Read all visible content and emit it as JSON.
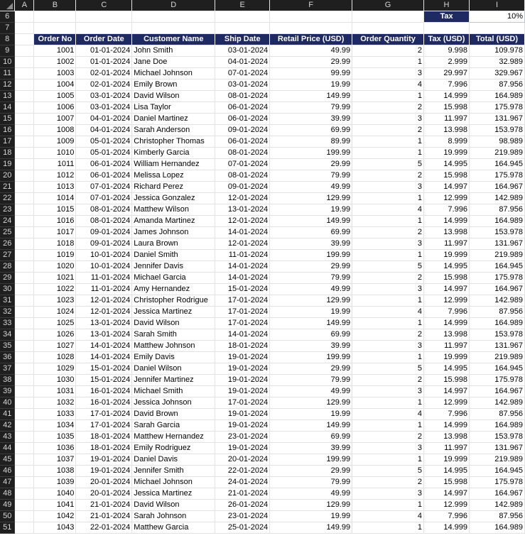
{
  "column_headers": [
    "A",
    "B",
    "C",
    "D",
    "E",
    "F",
    "G",
    "H",
    "I"
  ],
  "tax": {
    "label": "Tax",
    "value": "10%"
  },
  "table_headers": [
    "Order No",
    "Order Date",
    "Customer Name",
    "Ship Date",
    "Retail Price (USD)",
    "Order Quantity",
    "Tax (USD)",
    "Total (USD)"
  ],
  "rows": [
    {
      "r": "9",
      "no": "1001",
      "date": "01-01-2024",
      "name": "John Smith",
      "ship": "03-01-2024",
      "price": "49.99",
      "qty": "2",
      "tax": "9.998",
      "total": "109.978"
    },
    {
      "r": "10",
      "no": "1002",
      "date": "01-01-2024",
      "name": "Jane Doe",
      "ship": "04-01-2024",
      "price": "29.99",
      "qty": "1",
      "tax": "2.999",
      "total": "32.989"
    },
    {
      "r": "11",
      "no": "1003",
      "date": "02-01-2024",
      "name": "Michael Johnson",
      "ship": "07-01-2024",
      "price": "99.99",
      "qty": "3",
      "tax": "29.997",
      "total": "329.967"
    },
    {
      "r": "12",
      "no": "1004",
      "date": "02-01-2024",
      "name": "Emily Brown",
      "ship": "03-01-2024",
      "price": "19.99",
      "qty": "4",
      "tax": "7.996",
      "total": "87.956"
    },
    {
      "r": "13",
      "no": "1005",
      "date": "03-01-2024",
      "name": "David Wilson",
      "ship": "08-01-2024",
      "price": "149.99",
      "qty": "1",
      "tax": "14.999",
      "total": "164.989"
    },
    {
      "r": "14",
      "no": "1006",
      "date": "03-01-2024",
      "name": "Lisa Taylor",
      "ship": "06-01-2024",
      "price": "79.99",
      "qty": "2",
      "tax": "15.998",
      "total": "175.978"
    },
    {
      "r": "15",
      "no": "1007",
      "date": "04-01-2024",
      "name": "Daniel Martinez",
      "ship": "06-01-2024",
      "price": "39.99",
      "qty": "3",
      "tax": "11.997",
      "total": "131.967"
    },
    {
      "r": "16",
      "no": "1008",
      "date": "04-01-2024",
      "name": "Sarah Anderson",
      "ship": "09-01-2024",
      "price": "69.99",
      "qty": "2",
      "tax": "13.998",
      "total": "153.978"
    },
    {
      "r": "17",
      "no": "1009",
      "date": "05-01-2024",
      "name": "Christopher Thomas",
      "ship": "06-01-2024",
      "price": "89.99",
      "qty": "1",
      "tax": "8.999",
      "total": "98.989"
    },
    {
      "r": "18",
      "no": "1010",
      "date": "05-01-2024",
      "name": "Kimberly Garcia",
      "ship": "08-01-2024",
      "price": "199.99",
      "qty": "1",
      "tax": "19.999",
      "total": "219.989"
    },
    {
      "r": "19",
      "no": "1011",
      "date": "06-01-2024",
      "name": "William Hernandez",
      "ship": "07-01-2024",
      "price": "29.99",
      "qty": "5",
      "tax": "14.995",
      "total": "164.945"
    },
    {
      "r": "20",
      "no": "1012",
      "date": "06-01-2024",
      "name": "Melissa Lopez",
      "ship": "08-01-2024",
      "price": "79.99",
      "qty": "2",
      "tax": "15.998",
      "total": "175.978"
    },
    {
      "r": "21",
      "no": "1013",
      "date": "07-01-2024",
      "name": "Richard Perez",
      "ship": "09-01-2024",
      "price": "49.99",
      "qty": "3",
      "tax": "14.997",
      "total": "164.967"
    },
    {
      "r": "22",
      "no": "1014",
      "date": "07-01-2024",
      "name": "Jessica Gonzalez",
      "ship": "12-01-2024",
      "price": "129.99",
      "qty": "1",
      "tax": "12.999",
      "total": "142.989"
    },
    {
      "r": "23",
      "no": "1015",
      "date": "08-01-2024",
      "name": "Matthew Wilson",
      "ship": "13-01-2024",
      "price": "19.99",
      "qty": "4",
      "tax": "7.996",
      "total": "87.956"
    },
    {
      "r": "24",
      "no": "1016",
      "date": "08-01-2024",
      "name": "Amanda Martinez",
      "ship": "12-01-2024",
      "price": "149.99",
      "qty": "1",
      "tax": "14.999",
      "total": "164.989"
    },
    {
      "r": "25",
      "no": "1017",
      "date": "09-01-2024",
      "name": "James Johnson",
      "ship": "14-01-2024",
      "price": "69.99",
      "qty": "2",
      "tax": "13.998",
      "total": "153.978"
    },
    {
      "r": "26",
      "no": "1018",
      "date": "09-01-2024",
      "name": "Laura Brown",
      "ship": "12-01-2024",
      "price": "39.99",
      "qty": "3",
      "tax": "11.997",
      "total": "131.967"
    },
    {
      "r": "27",
      "no": "1019",
      "date": "10-01-2024",
      "name": "Daniel Smith",
      "ship": "11-01-2024",
      "price": "199.99",
      "qty": "1",
      "tax": "19.999",
      "total": "219.989"
    },
    {
      "r": "28",
      "no": "1020",
      "date": "10-01-2024",
      "name": "Jennifer Davis",
      "ship": "14-01-2024",
      "price": "29.99",
      "qty": "5",
      "tax": "14.995",
      "total": "164.945"
    },
    {
      "r": "29",
      "no": "1021",
      "date": "11-01-2024",
      "name": "Michael Garcia",
      "ship": "14-01-2024",
      "price": "79.99",
      "qty": "2",
      "tax": "15.998",
      "total": "175.978"
    },
    {
      "r": "30",
      "no": "1022",
      "date": "11-01-2024",
      "name": "Amy Hernandez",
      "ship": "15-01-2024",
      "price": "49.99",
      "qty": "3",
      "tax": "14.997",
      "total": "164.967"
    },
    {
      "r": "31",
      "no": "1023",
      "date": "12-01-2024",
      "name": "Christopher Rodrigue",
      "ship": "17-01-2024",
      "price": "129.99",
      "qty": "1",
      "tax": "12.999",
      "total": "142.989"
    },
    {
      "r": "32",
      "no": "1024",
      "date": "12-01-2024",
      "name": "Jessica Martinez",
      "ship": "17-01-2024",
      "price": "19.99",
      "qty": "4",
      "tax": "7.996",
      "total": "87.956"
    },
    {
      "r": "33",
      "no": "1025",
      "date": "13-01-2024",
      "name": "David Wilson",
      "ship": "17-01-2024",
      "price": "149.99",
      "qty": "1",
      "tax": "14.999",
      "total": "164.989"
    },
    {
      "r": "34",
      "no": "1026",
      "date": "13-01-2024",
      "name": "Sarah Smith",
      "ship": "14-01-2024",
      "price": "69.99",
      "qty": "2",
      "tax": "13.998",
      "total": "153.978"
    },
    {
      "r": "35",
      "no": "1027",
      "date": "14-01-2024",
      "name": "Matthew Johnson",
      "ship": "18-01-2024",
      "price": "39.99",
      "qty": "3",
      "tax": "11.997",
      "total": "131.967"
    },
    {
      "r": "36",
      "no": "1028",
      "date": "14-01-2024",
      "name": "Emily Davis",
      "ship": "19-01-2024",
      "price": "199.99",
      "qty": "1",
      "tax": "19.999",
      "total": "219.989"
    },
    {
      "r": "37",
      "no": "1029",
      "date": "15-01-2024",
      "name": "Daniel Wilson",
      "ship": "19-01-2024",
      "price": "29.99",
      "qty": "5",
      "tax": "14.995",
      "total": "164.945"
    },
    {
      "r": "38",
      "no": "1030",
      "date": "15-01-2024",
      "name": "Jennifer Martinez",
      "ship": "19-01-2024",
      "price": "79.99",
      "qty": "2",
      "tax": "15.998",
      "total": "175.978"
    },
    {
      "r": "39",
      "no": "1031",
      "date": "16-01-2024",
      "name": "Michael Smith",
      "ship": "19-01-2024",
      "price": "49.99",
      "qty": "3",
      "tax": "14.997",
      "total": "164.967"
    },
    {
      "r": "40",
      "no": "1032",
      "date": "16-01-2024",
      "name": "Jessica Johnson",
      "ship": "17-01-2024",
      "price": "129.99",
      "qty": "1",
      "tax": "12.999",
      "total": "142.989"
    },
    {
      "r": "41",
      "no": "1033",
      "date": "17-01-2024",
      "name": "David Brown",
      "ship": "19-01-2024",
      "price": "19.99",
      "qty": "4",
      "tax": "7.996",
      "total": "87.956"
    },
    {
      "r": "42",
      "no": "1034",
      "date": "17-01-2024",
      "name": "Sarah Garcia",
      "ship": "19-01-2024",
      "price": "149.99",
      "qty": "1",
      "tax": "14.999",
      "total": "164.989"
    },
    {
      "r": "43",
      "no": "1035",
      "date": "18-01-2024",
      "name": "Matthew Hernandez",
      "ship": "23-01-2024",
      "price": "69.99",
      "qty": "2",
      "tax": "13.998",
      "total": "153.978"
    },
    {
      "r": "44",
      "no": "1036",
      "date": "18-01-2024",
      "name": "Emily Rodriguez",
      "ship": "19-01-2024",
      "price": "39.99",
      "qty": "3",
      "tax": "11.997",
      "total": "131.967"
    },
    {
      "r": "45",
      "no": "1037",
      "date": "19-01-2024",
      "name": "Daniel Davis",
      "ship": "20-01-2024",
      "price": "199.99",
      "qty": "1",
      "tax": "19.999",
      "total": "219.989"
    },
    {
      "r": "46",
      "no": "1038",
      "date": "19-01-2024",
      "name": "Jennifer Smith",
      "ship": "22-01-2024",
      "price": "29.99",
      "qty": "5",
      "tax": "14.995",
      "total": "164.945"
    },
    {
      "r": "47",
      "no": "1039",
      "date": "20-01-2024",
      "name": "Michael Johnson",
      "ship": "24-01-2024",
      "price": "79.99",
      "qty": "2",
      "tax": "15.998",
      "total": "175.978"
    },
    {
      "r": "48",
      "no": "1040",
      "date": "20-01-2024",
      "name": "Jessica Martinez",
      "ship": "21-01-2024",
      "price": "49.99",
      "qty": "3",
      "tax": "14.997",
      "total": "164.967"
    },
    {
      "r": "49",
      "no": "1041",
      "date": "21-01-2024",
      "name": "David Wilson",
      "ship": "26-01-2024",
      "price": "129.99",
      "qty": "1",
      "tax": "12.999",
      "total": "142.989"
    },
    {
      "r": "50",
      "no": "1042",
      "date": "21-01-2024",
      "name": "Sarah Johnson",
      "ship": "23-01-2024",
      "price": "19.99",
      "qty": "4",
      "tax": "7.996",
      "total": "87.956"
    },
    {
      "r": "51",
      "no": "1043",
      "date": "22-01-2024",
      "name": "Matthew Garcia",
      "ship": "25-01-2024",
      "price": "149.99",
      "qty": "1",
      "tax": "14.999",
      "total": "164.989"
    }
  ]
}
